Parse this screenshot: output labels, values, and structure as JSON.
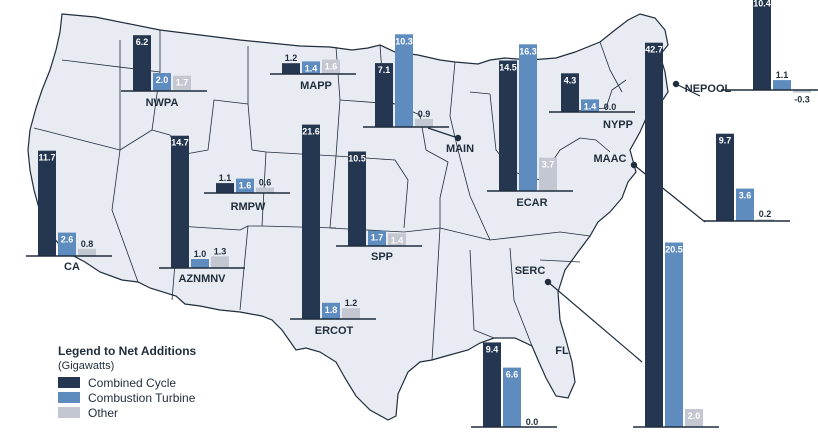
{
  "colors": {
    "combined": "#253650",
    "turbine": "#5f8cbf",
    "other": "#c3c7d1",
    "land": "#e8ebf1",
    "border": "#1f2d3d",
    "text": "#1f2d3d"
  },
  "legend": {
    "title": "Legend to Net Additions",
    "unit": "(Gigawatts)",
    "items": [
      {
        "key": "combined",
        "label": "Combined Cycle"
      },
      {
        "key": "turbine",
        "label": "Combustion Turbine"
      },
      {
        "key": "other",
        "label": "Other"
      }
    ]
  },
  "chart_data": {
    "type": "bar",
    "categories": [
      "Combined Cycle",
      "Combustion Turbine",
      "Other"
    ],
    "regions": [
      {
        "name": "NWPA",
        "values": [
          6.2,
          2.0,
          1.7
        ]
      },
      {
        "name": "MAPP",
        "values": [
          1.2,
          1.4,
          1.6
        ]
      },
      {
        "name": "MAIN",
        "values": [
          7.1,
          10.3,
          0.9
        ]
      },
      {
        "name": "ECAR",
        "values": [
          14.5,
          16.3,
          3.7
        ]
      },
      {
        "name": "NYPP",
        "values": [
          4.3,
          1.4,
          0.0
        ]
      },
      {
        "name": "NEPOOL",
        "values": [
          10.4,
          1.1,
          -0.3
        ]
      },
      {
        "name": "MAAC",
        "values": [
          9.7,
          3.6,
          0.2
        ]
      },
      {
        "name": "CA",
        "values": [
          11.7,
          2.6,
          0.8
        ]
      },
      {
        "name": "AZNMNV",
        "values": [
          14.7,
          1.0,
          1.3
        ]
      },
      {
        "name": "RMPW",
        "values": [
          1.1,
          1.6,
          0.6
        ]
      },
      {
        "name": "ERCOT",
        "values": [
          21.6,
          1.8,
          1.2
        ]
      },
      {
        "name": "SPP",
        "values": [
          10.5,
          1.7,
          1.4
        ]
      },
      {
        "name": "SERC",
        "values": [
          42.7,
          20.5,
          2.0
        ]
      },
      {
        "name": "FL",
        "values": [
          9.4,
          6.6,
          0.0
        ]
      }
    ]
  }
}
